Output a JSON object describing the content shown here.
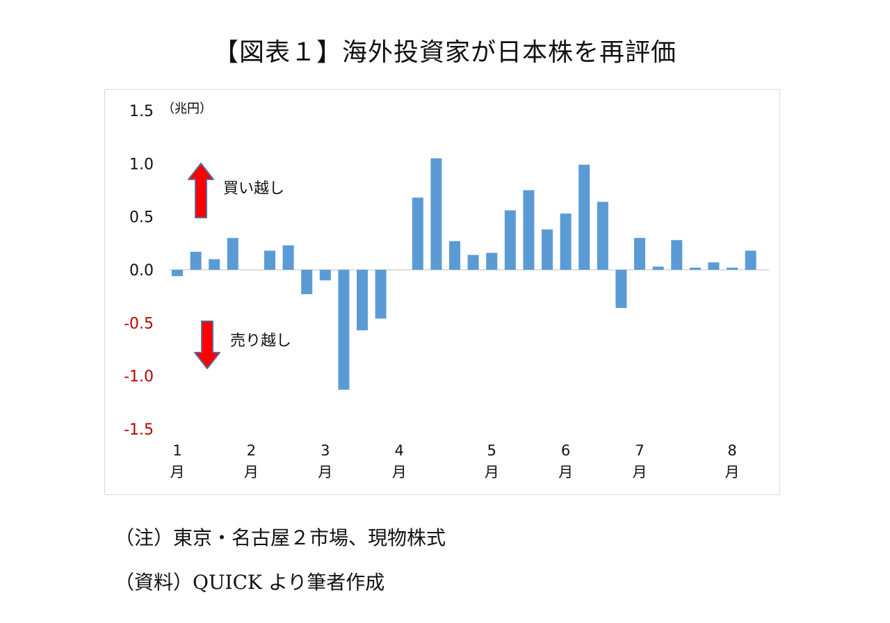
{
  "title": "【図表１】海外投資家が日本株を再評価",
  "notes": {
    "note1": "（注）東京・名古屋２市場、現物株式",
    "note2": "（資料）QUICK より筆者作成"
  },
  "colors": {
    "bar": "#5b9bd5",
    "negative_tick": "#c00000",
    "arrow": "#ff0000",
    "arrow_border": "#5b6b9a"
  },
  "chart_data": {
    "type": "bar",
    "unit_label": "（兆円）",
    "ylim": [
      -1.5,
      1.5
    ],
    "yticks": [
      {
        "value": 1.5,
        "label": "1.5"
      },
      {
        "value": 1.0,
        "label": "1.0"
      },
      {
        "value": 0.5,
        "label": "0.5"
      },
      {
        "value": 0.0,
        "label": "0.0"
      },
      {
        "value": -0.5,
        "label": "-0.5"
      },
      {
        "value": -1.0,
        "label": "-1.0"
      },
      {
        "value": -1.5,
        "label": "-1.5"
      }
    ],
    "values": [
      -0.06,
      0.17,
      0.1,
      0.3,
      null,
      0.18,
      0.23,
      -0.23,
      -0.1,
      -1.13,
      -0.57,
      -0.46,
      null,
      0.68,
      1.05,
      0.27,
      0.14,
      0.16,
      0.56,
      0.75,
      0.38,
      0.53,
      0.99,
      0.64,
      -0.36,
      0.3,
      0.03,
      0.28,
      0.02,
      0.07,
      0.02,
      0.18
    ],
    "month_labels": [
      {
        "index": 0,
        "num": "1",
        "unit": "月"
      },
      {
        "index": 4,
        "num": "2",
        "unit": "月"
      },
      {
        "index": 8,
        "num": "3",
        "unit": "月"
      },
      {
        "index": 12,
        "num": "4",
        "unit": "月"
      },
      {
        "index": 17,
        "num": "5",
        "unit": "月"
      },
      {
        "index": 21,
        "num": "6",
        "unit": "月"
      },
      {
        "index": 25,
        "num": "7",
        "unit": "月"
      },
      {
        "index": 30,
        "num": "8",
        "unit": "月"
      }
    ],
    "annotations": {
      "buy": "買い越し",
      "sell": "売り越し"
    },
    "grid": false,
    "legend": "none"
  }
}
